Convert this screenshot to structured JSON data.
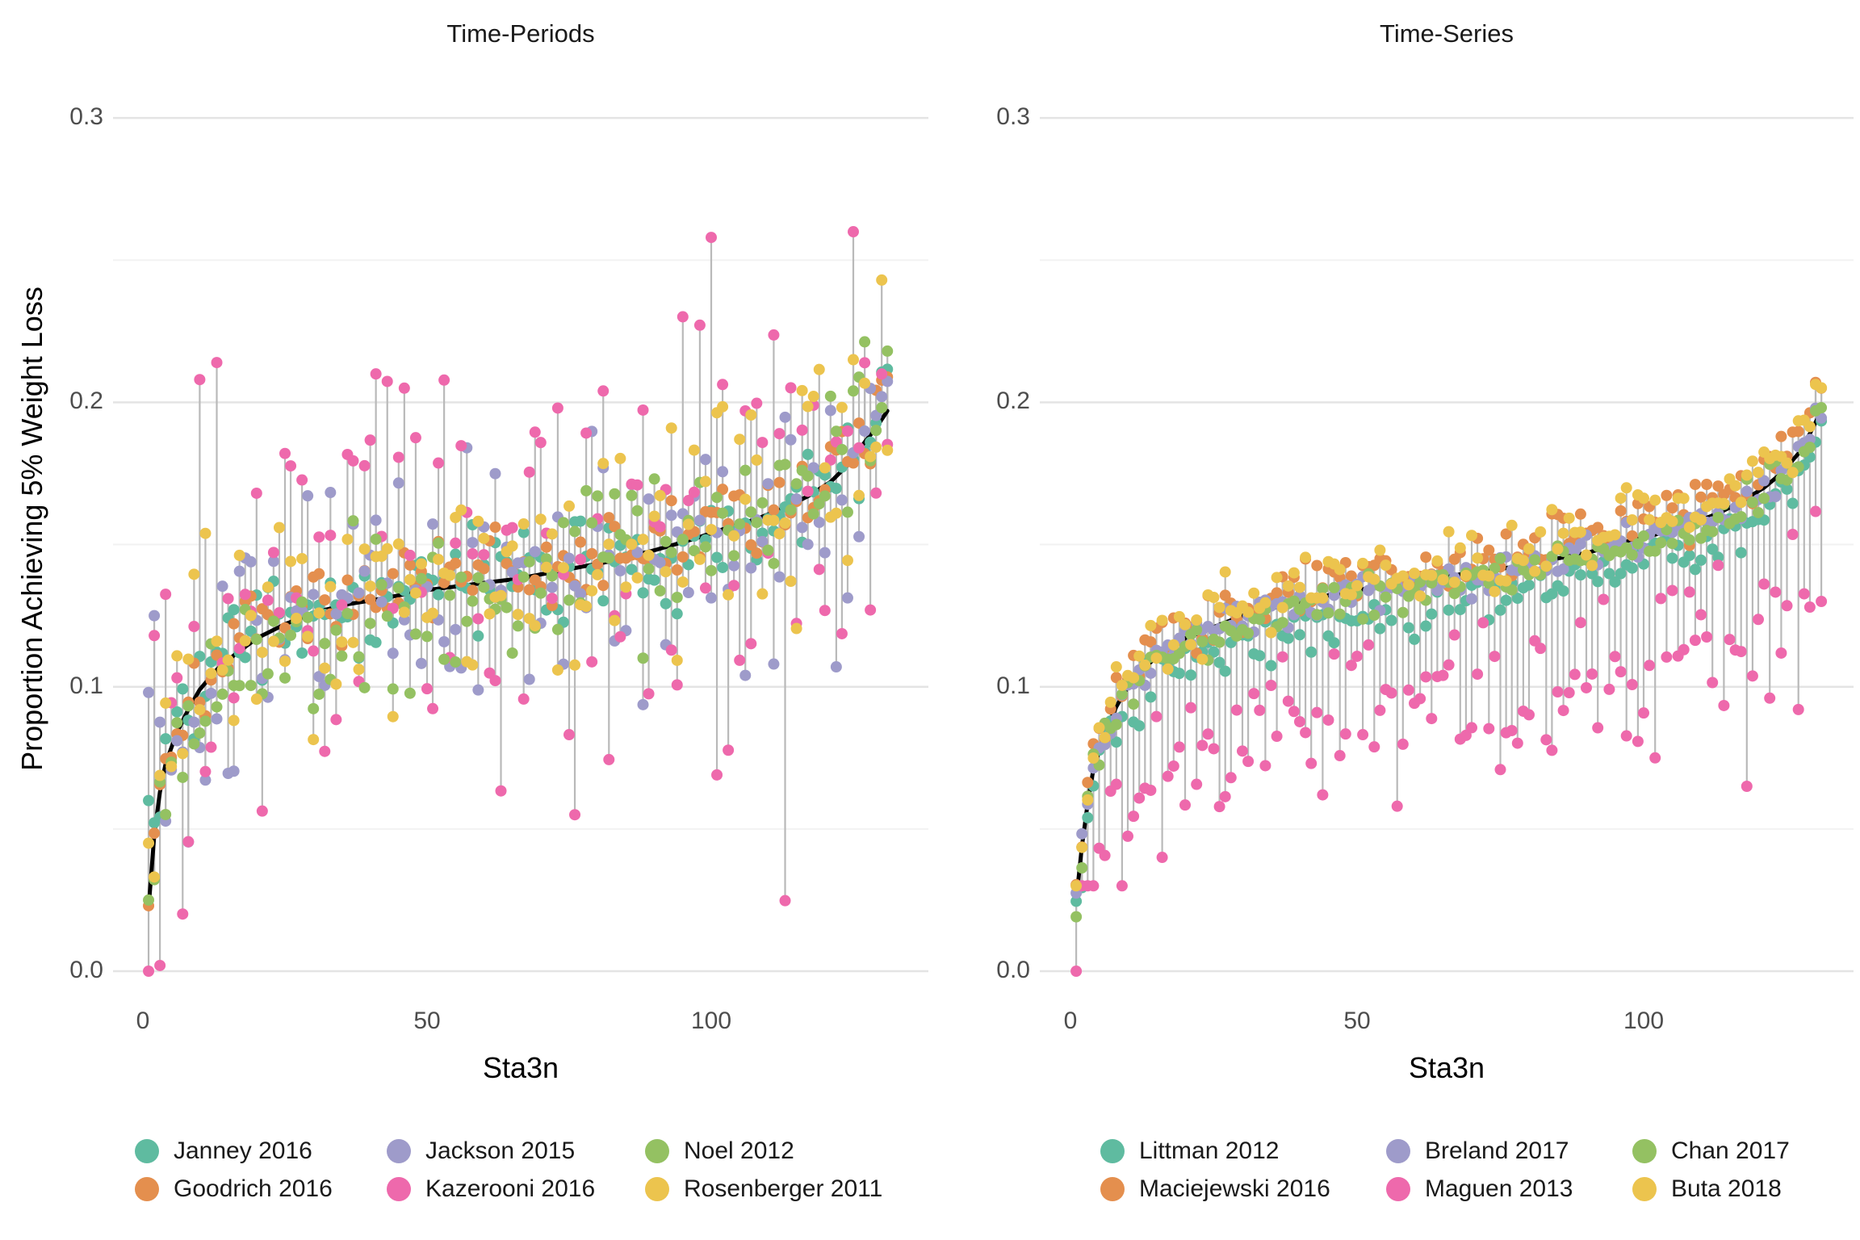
{
  "figure": {
    "background": "#FFFFFF",
    "ylabel": "Proportion Achieving 5% Weight Loss",
    "xlabel": "Sta3n"
  },
  "colors": {
    "trend_line": "#000000",
    "stem": "#B9B9B9",
    "grid_major": "#E4E4E4",
    "grid_minor": "#F2F2F2",
    "tick_label": "#4D4D4D",
    "title_text": "#1A1A1A"
  },
  "chart_data": [
    {
      "type": "scatter",
      "title": "Time-Periods",
      "xlabel": "Sta3n",
      "ylabel": "Proportion Achieving 5% Weight Loss",
      "legend_position": "bottom",
      "grid": "horizontal-only",
      "n_sta3n": 131,
      "ylim": [
        0.0,
        0.3
      ],
      "y_ticks": [
        0.0,
        0.1,
        0.2,
        0.3
      ],
      "y_tick_labels": [
        "0.0",
        "0.1",
        "0.2",
        "0.3"
      ],
      "y_minor_gridlines": [
        0.05,
        0.15,
        0.25
      ],
      "x_tick_values": [
        0,
        50,
        100
      ],
      "x_tick_labels": [
        "0",
        "50",
        "100"
      ],
      "trend_black_line_control_points": [
        [
          1,
          0.022
        ],
        [
          2,
          0.048
        ],
        [
          3,
          0.063
        ],
        [
          4,
          0.073
        ],
        [
          6,
          0.084
        ],
        [
          8,
          0.092
        ],
        [
          10,
          0.099
        ],
        [
          13,
          0.106
        ],
        [
          16,
          0.111
        ],
        [
          20,
          0.117
        ],
        [
          25,
          0.122
        ],
        [
          30,
          0.126
        ],
        [
          36,
          0.129
        ],
        [
          42,
          0.131
        ],
        [
          50,
          0.134
        ],
        [
          58,
          0.136
        ],
        [
          66,
          0.138
        ],
        [
          74,
          0.141
        ],
        [
          82,
          0.144
        ],
        [
          90,
          0.148
        ],
        [
          97,
          0.152
        ],
        [
          103,
          0.156
        ],
        [
          108,
          0.159
        ],
        [
          113,
          0.163
        ],
        [
          117,
          0.167
        ],
        [
          121,
          0.172
        ],
        [
          124,
          0.178
        ],
        [
          127,
          0.186
        ],
        [
          129,
          0.191
        ],
        [
          131,
          0.197
        ]
      ],
      "series": [
        {
          "name": "Janney 2016",
          "color": "#5FBBA0",
          "bias": 0.0,
          "sd": 0.009,
          "seed": 3,
          "outliers": [
            [
              1,
              0.06
            ],
            [
              128,
              0.186
            ]
          ]
        },
        {
          "name": "Goodrich 2016",
          "color": "#E48F4E",
          "bias": 0.002,
          "sd": 0.007,
          "seed": 7,
          "outliers": [
            [
              1,
              0.023
            ]
          ]
        },
        {
          "name": "Jackson 2015",
          "color": "#9E9BCA",
          "bias": 0.0,
          "sd": 0.021,
          "seed": 13,
          "outliers": [
            [
              1,
              0.098
            ],
            [
              2,
              0.125
            ],
            [
              106,
              0.104
            ],
            [
              111,
              0.108
            ],
            [
              122,
              0.107
            ],
            [
              130,
              0.202
            ]
          ]
        },
        {
          "name": "Kazerooni 2016",
          "color": "#EE69AC",
          "bias": 0.004,
          "sd": 0.034,
          "seed": 29,
          "heavy": true,
          "outliers": [
            [
              1,
              0.0
            ],
            [
              2,
              0.118
            ],
            [
              10,
              0.208
            ],
            [
              13,
              0.214
            ],
            [
              41,
              0.21
            ],
            [
              46,
              0.205
            ],
            [
              73,
              0.198
            ],
            [
              76,
              0.055
            ],
            [
              81,
              0.204
            ],
            [
              100,
              0.258
            ],
            [
              106,
              0.197
            ],
            [
              118,
              0.199
            ],
            [
              125,
              0.26
            ],
            [
              128,
              0.127
            ]
          ]
        },
        {
          "name": "Noel 2012",
          "color": "#94C162",
          "bias": -0.004,
          "sd": 0.016,
          "seed": 17,
          "outliers": [
            [
              1,
              0.025
            ],
            [
              125,
              0.204
            ]
          ]
        },
        {
          "name": "Rosenberger 2011",
          "color": "#ECC44E",
          "bias": 0.004,
          "sd": 0.021,
          "seed": 23,
          "outliers": [
            [
              1,
              0.045
            ],
            [
              105,
              0.187
            ],
            [
              125,
              0.215
            ],
            [
              130,
              0.243
            ]
          ]
        }
      ]
    },
    {
      "type": "scatter",
      "title": "Time-Series",
      "xlabel": "Sta3n",
      "ylabel": "Proportion Achieving 5% Weight Loss",
      "legend_position": "bottom",
      "grid": "horizontal-only",
      "n_sta3n": 131,
      "ylim": [
        0.0,
        0.3
      ],
      "y_ticks": [
        0.0,
        0.1,
        0.2,
        0.3
      ],
      "y_tick_labels": [
        "0.0",
        "0.1",
        "0.2",
        "0.3"
      ],
      "y_minor_gridlines": [
        0.05,
        0.15,
        0.25
      ],
      "x_tick_values": [
        0,
        50,
        100
      ],
      "x_tick_labels": [
        "0",
        "50",
        "100"
      ],
      "trend_black_line_control_points": [
        [
          1,
          0.025
        ],
        [
          2,
          0.044
        ],
        [
          3,
          0.059
        ],
        [
          4,
          0.071
        ],
        [
          6,
          0.084
        ],
        [
          8,
          0.093
        ],
        [
          10,
          0.1
        ],
        [
          13,
          0.107
        ],
        [
          16,
          0.112
        ],
        [
          20,
          0.117
        ],
        [
          25,
          0.121
        ],
        [
          30,
          0.125
        ],
        [
          36,
          0.128
        ],
        [
          42,
          0.131
        ],
        [
          50,
          0.134
        ],
        [
          58,
          0.136
        ],
        [
          66,
          0.139
        ],
        [
          74,
          0.141
        ],
        [
          82,
          0.144
        ],
        [
          90,
          0.147
        ],
        [
          97,
          0.151
        ],
        [
          103,
          0.154
        ],
        [
          108,
          0.157
        ],
        [
          113,
          0.161
        ],
        [
          117,
          0.165
        ],
        [
          121,
          0.17
        ],
        [
          124,
          0.175
        ],
        [
          127,
          0.182
        ],
        [
          129,
          0.189
        ],
        [
          131,
          0.197
        ]
      ],
      "series": [
        {
          "name": "Littman 2012",
          "color": "#5FBBA0",
          "bias": -0.008,
          "sd": 0.005,
          "seed": 31,
          "outliers": [
            [
              124,
              0.172
            ],
            [
              127,
              0.176
            ],
            [
              130,
              0.186
            ]
          ]
        },
        {
          "name": "Maciejewski 2016",
          "color": "#E48F4E",
          "bias": 0.005,
          "sd": 0.005,
          "seed": 37,
          "outliers": [
            [
              130,
              0.207
            ],
            [
              131,
              0.205
            ]
          ]
        },
        {
          "name": "Breland 2017",
          "color": "#9E9BCA",
          "bias": -0.001,
          "sd": 0.0035,
          "seed": 41,
          "outliers": []
        },
        {
          "name": "Maguen 2013",
          "color": "#EE69AC",
          "bias": -0.042,
          "sd": 0.014,
          "seed": 47,
          "below": true,
          "outliers": [
            [
              1,
              0.0
            ],
            [
              44,
              0.062
            ],
            [
              57,
              0.058
            ],
            [
              102,
              0.075
            ],
            [
              118,
              0.065
            ],
            [
              122,
              0.096
            ],
            [
              127,
              0.092
            ],
            [
              129,
              0.128
            ],
            [
              131,
              0.13
            ]
          ]
        },
        {
          "name": "Chan 2017",
          "color": "#94C162",
          "bias": -0.002,
          "sd": 0.0035,
          "seed": 53,
          "outliers": []
        },
        {
          "name": "Buta 2018",
          "color": "#ECC44E",
          "bias": 0.005,
          "sd": 0.006,
          "seed": 59,
          "outliers": [
            [
              1,
              0.03
            ]
          ]
        }
      ]
    }
  ]
}
